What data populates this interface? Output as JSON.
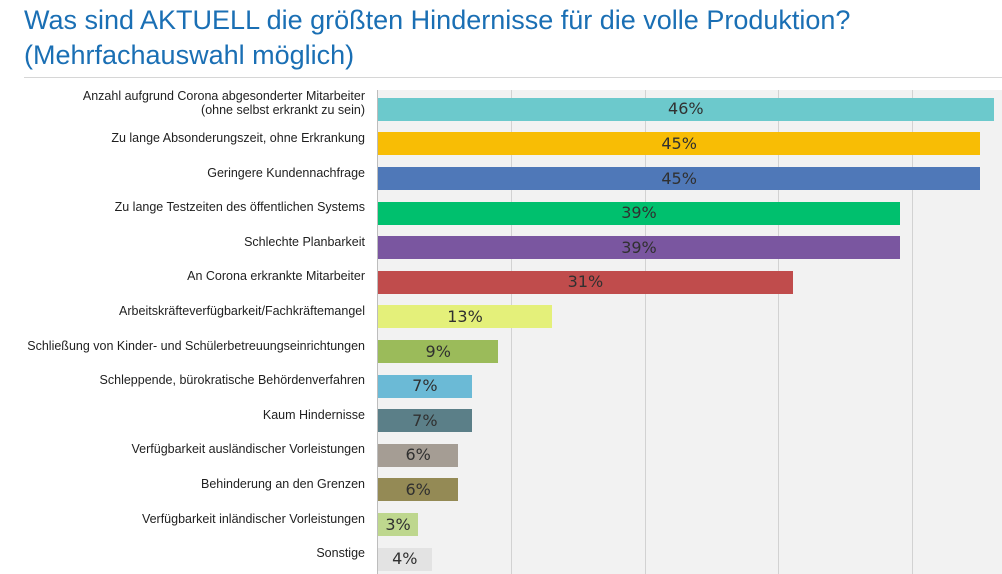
{
  "chart_data": {
    "type": "bar",
    "orientation": "horizontal",
    "title_lines": [
      "Was sind AKTUELL die größten Hindernisse für die volle Produktion?",
      "(Mehrfachauswahl möglich)"
    ],
    "categories": [
      [
        "Anzahl aufgrund Corona abgesonderter Mitarbeiter",
        "(ohne selbst erkrankt zu sein)"
      ],
      [
        "Zu lange Absonderungszeit, ohne Erkrankung"
      ],
      [
        "Geringere Kundennachfrage"
      ],
      [
        "Zu lange Testzeiten des öffentlichen Systems"
      ],
      [
        "Schlechte Planbarkeit"
      ],
      [
        "An Corona erkrankte Mitarbeiter"
      ],
      [
        "Arbeitskräfteverfügbarkeit/Fachkräftemangel"
      ],
      [
        "Schließung von Kinder- und Schülerbetreuungseinrichtungen"
      ],
      [
        "Schleppende, bürokratische Behördenverfahren"
      ],
      [
        "Kaum Hindernisse"
      ],
      [
        "Verfügbarkeit ausländischer Vorleistungen"
      ],
      [
        "Behinderung an den Grenzen"
      ],
      [
        "Verfügbarkeit inländischer Vorleistungen"
      ],
      [
        "Sonstige"
      ]
    ],
    "values": [
      46,
      45,
      45,
      39,
      39,
      31,
      13,
      9,
      7,
      7,
      6,
      6,
      3,
      4
    ],
    "value_labels": [
      "46%",
      "45%",
      "45%",
      "39%",
      "39%",
      "31%",
      "13%",
      "9%",
      "7%",
      "7%",
      "6%",
      "6%",
      "3%",
      "4%"
    ],
    "colors": [
      "#6cc9cc",
      "#f8bd05",
      "#4f78b8",
      "#00c06e",
      "#7a56a0",
      "#c04c4c",
      "#e4f07a",
      "#9bbb5a",
      "#6bbad6",
      "#5b7f88",
      "#a59d94",
      "#948a55",
      "#bed78e",
      "#e3e3e3"
    ],
    "xlim": [
      0,
      46.7
    ],
    "gridlines": [
      10,
      20,
      30,
      40
    ],
    "grid": true,
    "unit": "%"
  }
}
